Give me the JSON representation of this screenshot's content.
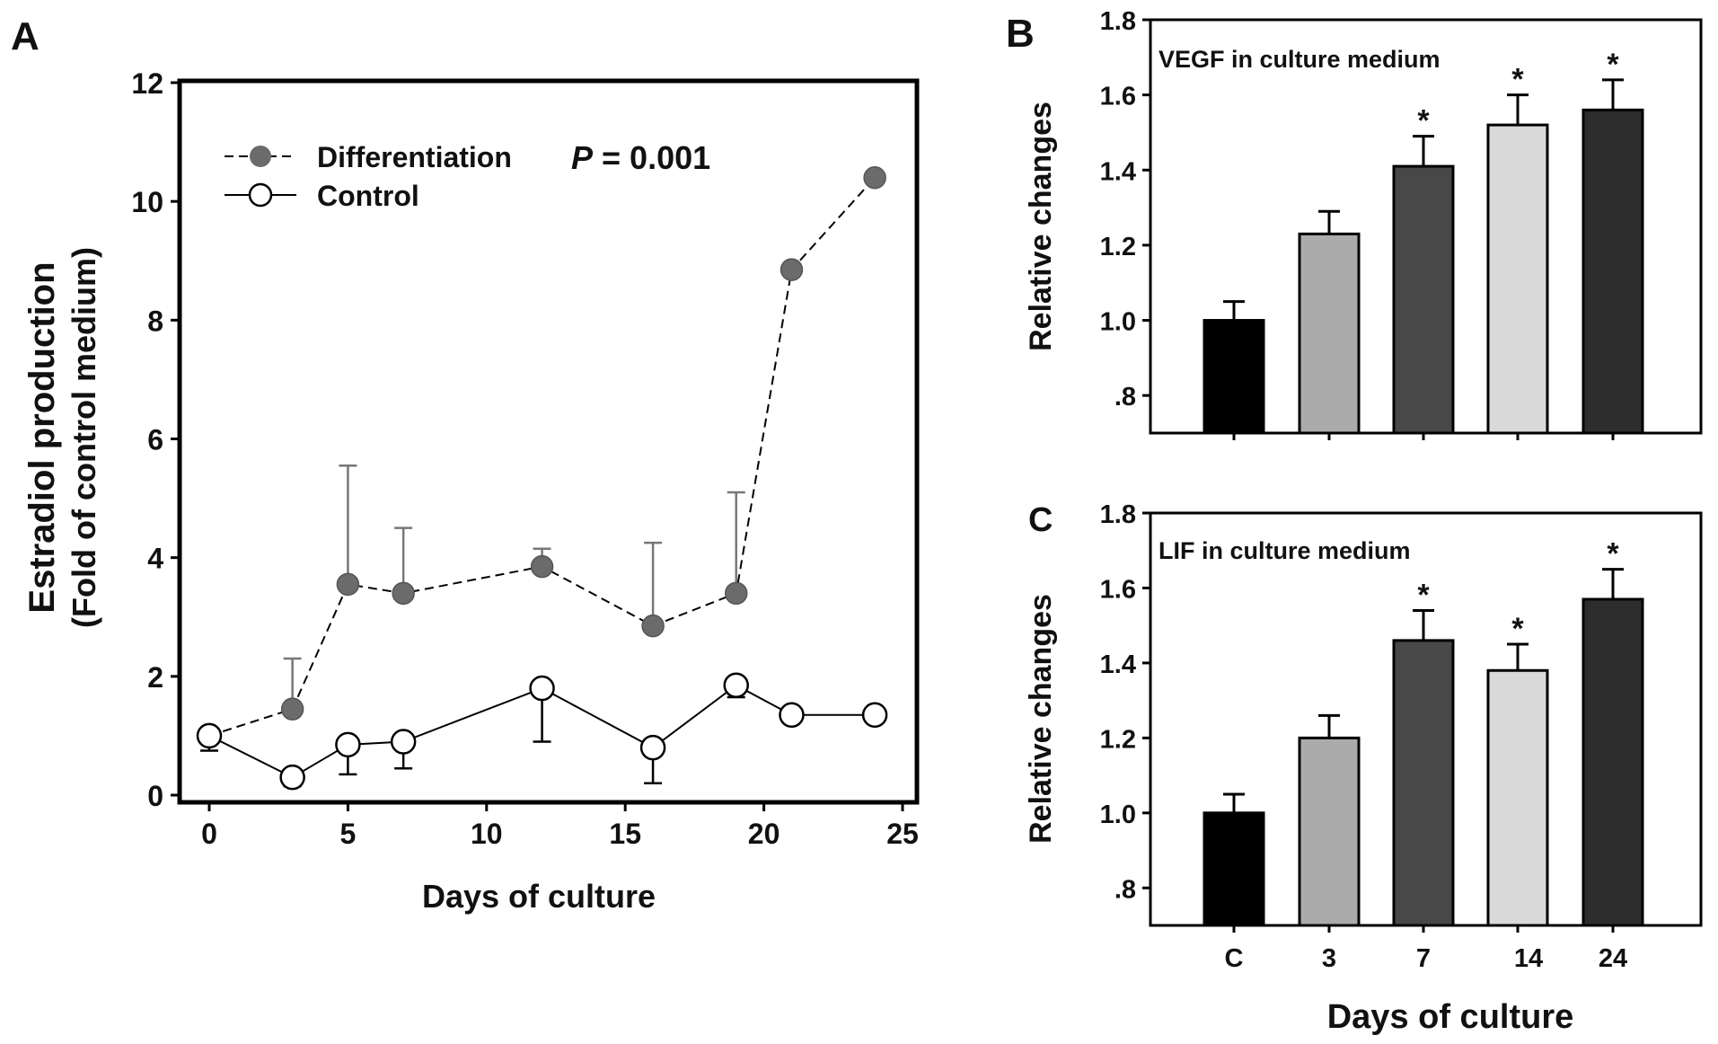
{
  "chart_data": [
    {
      "panel_label": "A",
      "type": "line",
      "xlabel": "Days of culture",
      "ylabel": [
        "Estradiol production",
        "(Fold of control medium)"
      ],
      "xlim": [
        0,
        25
      ],
      "ylim": [
        0,
        12
      ],
      "xticks": [
        "0",
        "5",
        "10",
        "15",
        "20",
        "25"
      ],
      "yticks": [
        "0",
        "2",
        "4",
        "6",
        "8",
        "10",
        "12"
      ],
      "grid": false,
      "legend_position": "top-left",
      "annotation": {
        "italic": "P",
        "rest": " = 0.001"
      },
      "series": [
        {
          "name": "Differentiation",
          "marker": "filled",
          "line": "dashed",
          "color": "#6b6b6b",
          "x": [
            0,
            3,
            5,
            7,
            12,
            16,
            19,
            21,
            24
          ],
          "y": [
            1.0,
            1.45,
            3.55,
            3.4,
            3.85,
            2.85,
            3.4,
            8.85,
            10.4
          ],
          "error_upper": [
            null,
            2.3,
            5.55,
            4.5,
            4.15,
            4.25,
            5.1,
            null,
            null
          ]
        },
        {
          "name": "Control",
          "marker": "open",
          "line": "solid",
          "color": "#000000",
          "x": [
            0,
            3,
            5,
            7,
            12,
            16,
            19,
            21,
            24
          ],
          "y": [
            1.0,
            0.3,
            0.85,
            0.9,
            1.8,
            0.8,
            1.85,
            1.35,
            1.35
          ],
          "error_lower": [
            0.75,
            0.15,
            0.35,
            0.45,
            0.9,
            0.2,
            1.65,
            null,
            null
          ]
        }
      ]
    },
    {
      "panel_label": "B",
      "type": "bar",
      "title": "VEGF in culture medium",
      "ylabel": "Relative changes",
      "ylim": [
        0.7,
        1.8
      ],
      "yticks": [
        ".8",
        "1.0",
        "1.2",
        "1.4",
        "1.6",
        "1.8"
      ],
      "categories": [
        "C",
        "3",
        "7",
        "14",
        "24"
      ],
      "values": [
        1.0,
        1.23,
        1.41,
        1.52,
        1.56
      ],
      "errors": [
        0.05,
        0.06,
        0.08,
        0.08,
        0.08
      ],
      "significant": [
        false,
        false,
        true,
        true,
        true
      ],
      "significance_mark": "*",
      "bar_colors": [
        "#000000",
        "#ababab",
        "#484848",
        "#d9d9d9",
        "#2d2d2d"
      ]
    },
    {
      "panel_label": "C",
      "type": "bar",
      "title": "LIF in culture medium",
      "ylabel": "Relative changes",
      "xlabel": "Days of culture",
      "ylim": [
        0.7,
        1.8
      ],
      "yticks": [
        ".8",
        "1.0",
        "1.2",
        "1.4",
        "1.6",
        "1.8"
      ],
      "categories": [
        "C",
        "3",
        "7",
        "14",
        "24"
      ],
      "values": [
        1.0,
        1.2,
        1.46,
        1.38,
        1.57
      ],
      "errors": [
        0.05,
        0.06,
        0.08,
        0.07,
        0.08
      ],
      "significant": [
        false,
        false,
        true,
        true,
        true
      ],
      "significance_mark": "*",
      "bar_colors": [
        "#000000",
        "#ababab",
        "#484848",
        "#d9d9d9",
        "#2d2d2d"
      ]
    }
  ]
}
